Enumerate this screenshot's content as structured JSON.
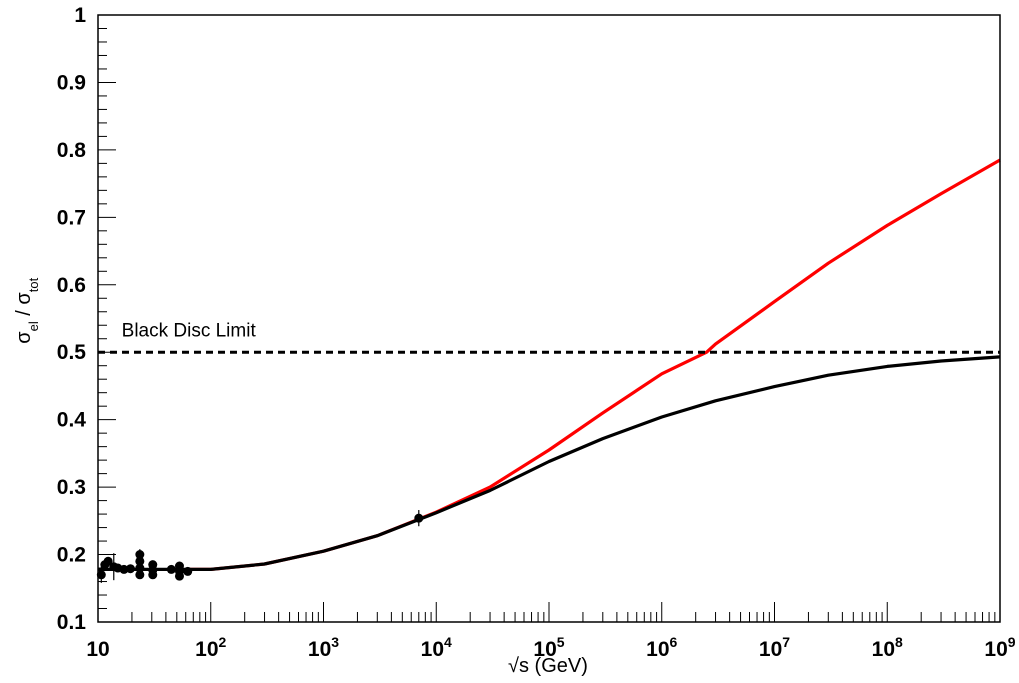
{
  "chart_data": {
    "type": "line",
    "title": "",
    "xlabel": "√s (GeV)",
    "ylabel": "σel / σtot",
    "ylabel_parts": {
      "sym1": "σ",
      "sub1": "el",
      "sep": " / ",
      "sym2": "σ",
      "sub2": "tot"
    },
    "xlabel_parts": {
      "root": "√",
      "var": "s",
      "unit": " (GeV)"
    },
    "x_scale": "log",
    "xlim": [
      10,
      1000000000
    ],
    "ylim": [
      0.1,
      1.0
    ],
    "grid": false,
    "x_ticks": [
      {
        "value": 10,
        "base": "10",
        "exp": ""
      },
      {
        "value": 100,
        "base": "10",
        "exp": "2"
      },
      {
        "value": 1000,
        "base": "10",
        "exp": "3"
      },
      {
        "value": 10000,
        "base": "10",
        "exp": "4"
      },
      {
        "value": 100000,
        "base": "10",
        "exp": "5"
      },
      {
        "value": 1000000,
        "base": "10",
        "exp": "6"
      },
      {
        "value": 10000000,
        "base": "10",
        "exp": "7"
      },
      {
        "value": 100000000,
        "base": "10",
        "exp": "8"
      },
      {
        "value": 1000000000,
        "base": "10",
        "exp": "9"
      }
    ],
    "y_ticks": [
      "0.1",
      "0.2",
      "0.3",
      "0.4",
      "0.5",
      "0.6",
      "0.7",
      "0.8",
      "0.9",
      "1"
    ],
    "annotations": [
      {
        "text": "Black Disc Limit",
        "x": 11,
        "y": 0.516
      }
    ],
    "series": [
      {
        "color": "#ff0000",
        "style": "solid",
        "x": [
          60,
          100,
          300,
          1000,
          3000,
          10000,
          30000,
          100000,
          300000,
          1000000,
          2500000,
          3000000,
          10000000,
          30000000,
          100000000,
          300000000,
          1000000000
        ],
        "y": [
          0.178,
          0.178,
          0.186,
          0.205,
          0.228,
          0.263,
          0.3,
          0.355,
          0.41,
          0.468,
          0.5,
          0.512,
          0.575,
          0.632,
          0.688,
          0.735,
          0.785
        ]
      },
      {
        "color": "#000000",
        "style": "solid",
        "x": [
          10,
          60,
          100,
          300,
          1000,
          3000,
          10000,
          30000,
          100000,
          300000,
          1000000,
          3000000,
          10000000,
          30000000,
          100000000,
          300000000,
          1000000000
        ],
        "y": [
          0.178,
          0.178,
          0.178,
          0.186,
          0.205,
          0.228,
          0.262,
          0.295,
          0.338,
          0.372,
          0.404,
          0.428,
          0.449,
          0.466,
          0.479,
          0.487,
          0.493
        ]
      },
      {
        "color": "#000000",
        "style": "dashed",
        "x": [
          10,
          1000000000
        ],
        "y": [
          0.5,
          0.5
        ]
      }
    ],
    "points": [
      {
        "x": 10.7,
        "y": 0.17,
        "ey": 0.012
      },
      {
        "x": 11.5,
        "y": 0.185,
        "ey": 0.008
      },
      {
        "x": 12.3,
        "y": 0.19,
        "ey": 0.006
      },
      {
        "x": 13.8,
        "y": 0.182,
        "ey": 0.02
      },
      {
        "x": 15,
        "y": 0.18,
        "ey": 0.006
      },
      {
        "x": 17,
        "y": 0.178,
        "ey": 0.005
      },
      {
        "x": 19.4,
        "y": 0.179,
        "ey": 0.005
      },
      {
        "x": 23.5,
        "y": 0.2,
        "ey": 0.008
      },
      {
        "x": 23.5,
        "y": 0.19,
        "ey": 0.006
      },
      {
        "x": 23.5,
        "y": 0.18,
        "ey": 0.005
      },
      {
        "x": 23.5,
        "y": 0.17,
        "ey": 0.005
      },
      {
        "x": 30.6,
        "y": 0.185,
        "ey": 0.005
      },
      {
        "x": 30.6,
        "y": 0.177,
        "ey": 0.005
      },
      {
        "x": 30.6,
        "y": 0.17,
        "ey": 0.005
      },
      {
        "x": 44.7,
        "y": 0.178,
        "ey": 0.005
      },
      {
        "x": 52.8,
        "y": 0.183,
        "ey": 0.005
      },
      {
        "x": 52.8,
        "y": 0.175,
        "ey": 0.005
      },
      {
        "x": 52.8,
        "y": 0.168,
        "ey": 0.005
      },
      {
        "x": 62.5,
        "y": 0.175,
        "ey": 0.005
      },
      {
        "x": 7000,
        "y": 0.254,
        "ey": 0.012
      }
    ]
  }
}
